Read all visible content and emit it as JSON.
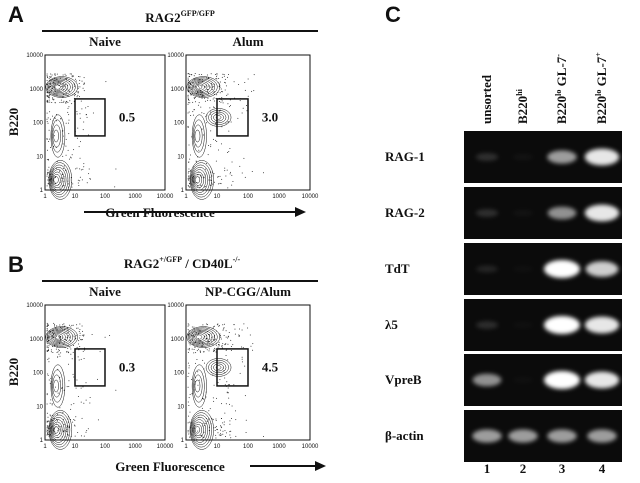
{
  "figure": {
    "axis_ticks": [
      1,
      10,
      100,
      1000,
      10000
    ],
    "A": {
      "label": "A",
      "title": {
        "base": "RAG2",
        "sup": "GFP/GFP"
      },
      "plots": [
        {
          "name": "Naive",
          "gate": "0.5"
        },
        {
          "name": "Alum",
          "gate": "3.0"
        }
      ],
      "y_label": "B220",
      "x_label": "Green Fluorescence"
    },
    "B": {
      "label": "B",
      "title": {
        "base": "RAG2",
        "sup1": "+/GFP",
        "mid": " / CD40L",
        "sup2": "-/-"
      },
      "plots": [
        {
          "name": "Naive",
          "gate": "0.3"
        },
        {
          "name": "NP-CGG/Alum",
          "gate": "4.5"
        }
      ],
      "y_label": "B220",
      "x_label": "Green Fluorescence"
    },
    "C": {
      "label": "C",
      "lanes": [
        {
          "base": "unsorted"
        },
        {
          "base": "B220",
          "sup": "hi"
        },
        {
          "base": "B220",
          "sup": "lo",
          "mid": " GL-7",
          "sup2": "-"
        },
        {
          "base": "B220",
          "sup": "lo",
          "mid": " GL-7",
          "sup2": "+"
        }
      ],
      "genes": [
        "RAG-1",
        "RAG-2",
        "TdT",
        "λ5",
        "VpreB",
        "β-actin"
      ],
      "lane_numbers": [
        1,
        2,
        3,
        4
      ]
    }
  }
}
